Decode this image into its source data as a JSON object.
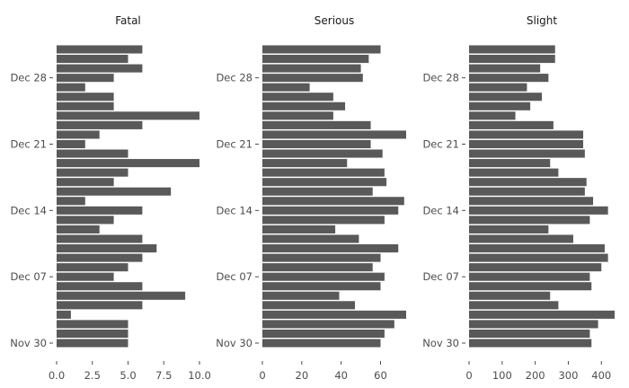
{
  "chart_data": {
    "type": "bar",
    "orientation": "horizontal",
    "facets": [
      "Fatal",
      "Serious",
      "Slight"
    ],
    "date_ticks": [
      "Nov 30",
      "Dec 07",
      "Dec 14",
      "Dec 21",
      "Dec 28"
    ],
    "dates": [
      "Nov 30",
      "Dec 01",
      "Dec 02",
      "Dec 03",
      "Dec 04",
      "Dec 05",
      "Dec 06",
      "Dec 07",
      "Dec 08",
      "Dec 09",
      "Dec 10",
      "Dec 11",
      "Dec 12",
      "Dec 13",
      "Dec 14",
      "Dec 15",
      "Dec 16",
      "Dec 17",
      "Dec 18",
      "Dec 19",
      "Dec 20",
      "Dec 21",
      "Dec 22",
      "Dec 23",
      "Dec 24",
      "Dec 25",
      "Dec 26",
      "Dec 27",
      "Dec 28",
      "Dec 29",
      "Dec 30",
      "Dec 31"
    ],
    "grid": false,
    "legend": "none",
    "bar_color": "#595959",
    "panels": [
      {
        "title": "Fatal",
        "xlim": [
          0,
          10
        ],
        "xticks": [
          "0.0",
          "2.5",
          "5.0",
          "7.5",
          "10.0"
        ],
        "xtick_values": [
          0,
          2.5,
          5,
          7.5,
          10
        ],
        "values": [
          5,
          5,
          5,
          1,
          6,
          9,
          6,
          4,
          5,
          6,
          7,
          6,
          3,
          4,
          6,
          2,
          8,
          4,
          5,
          10,
          5,
          2,
          3,
          6,
          10,
          4,
          4,
          2,
          4,
          6,
          5,
          6
        ]
      },
      {
        "title": "Serious",
        "xlim": [
          0,
          73
        ],
        "xticks": [
          "0",
          "20",
          "40",
          "60"
        ],
        "xtick_values": [
          0,
          20,
          40,
          60
        ],
        "values": [
          60,
          62,
          67,
          73,
          47,
          39,
          60,
          62,
          56,
          60,
          69,
          49,
          37,
          62,
          69,
          72,
          56,
          63,
          62,
          43,
          61,
          55,
          73,
          55,
          36,
          42,
          36,
          24,
          51,
          50,
          54,
          60
        ]
      },
      {
        "title": "Slight",
        "xlim": [
          0,
          440
        ],
        "xticks": [
          "0",
          "100",
          "200",
          "300",
          "400"
        ],
        "xtick_values": [
          0,
          100,
          200,
          300,
          400
        ],
        "values": [
          370,
          365,
          390,
          440,
          270,
          245,
          370,
          365,
          400,
          420,
          410,
          315,
          240,
          365,
          420,
          375,
          350,
          355,
          270,
          245,
          350,
          345,
          345,
          255,
          140,
          185,
          220,
          175,
          240,
          215,
          260,
          260
        ]
      }
    ]
  }
}
